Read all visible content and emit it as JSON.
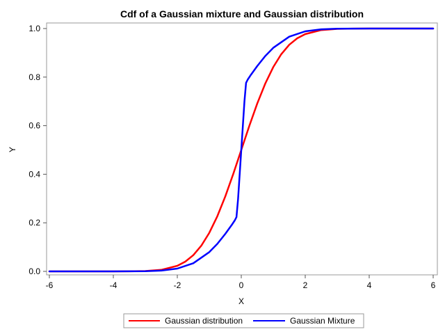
{
  "chart_data": {
    "type": "line",
    "title": "Cdf of a Gaussian mixture and Gaussian distribution",
    "xlabel": "X",
    "ylabel": "Y",
    "xlim": [
      -6,
      6
    ],
    "ylim": [
      0,
      1
    ],
    "xticks": [
      "-6",
      "-4",
      "-2",
      "0",
      "2",
      "4",
      "6"
    ],
    "yticks": [
      "0.0",
      "0.2",
      "0.4",
      "0.6",
      "0.8",
      "1.0"
    ],
    "grid": false,
    "legend_position": "bottom",
    "series": [
      {
        "name": "Gaussian distribution",
        "color": "#ff0000",
        "x": [
          -6,
          -5,
          -4,
          -3.5,
          -3,
          -2.5,
          -2,
          -1.75,
          -1.5,
          -1.25,
          -1,
          -0.75,
          -0.5,
          -0.25,
          0,
          0.25,
          0.5,
          0.75,
          1,
          1.25,
          1.5,
          1.75,
          2,
          2.5,
          3,
          3.5,
          4,
          5,
          6
        ],
        "y": [
          0,
          0,
          3e-05,
          0.0002,
          0.0013,
          0.0062,
          0.0228,
          0.0401,
          0.0668,
          0.1056,
          0.1587,
          0.2266,
          0.3085,
          0.4013,
          0.5,
          0.5987,
          0.6915,
          0.7734,
          0.8413,
          0.8944,
          0.9332,
          0.9599,
          0.9772,
          0.9938,
          0.9987,
          0.9998,
          1,
          1,
          1
        ]
      },
      {
        "name": "Gaussian Mixture",
        "color": "#0000ff",
        "x": [
          -6,
          -4,
          -3,
          -2.5,
          -2,
          -1.5,
          -1,
          -0.75,
          -0.5,
          -0.3,
          -0.2,
          -0.15,
          -0.1,
          -0.05,
          0,
          0.05,
          0.1,
          0.15,
          0.2,
          0.3,
          0.5,
          0.75,
          1,
          1.5,
          2,
          2.5,
          3,
          4,
          6
        ],
        "y": [
          0,
          0,
          0.0007,
          0.0031,
          0.0114,
          0.0334,
          0.0793,
          0.1133,
          0.1543,
          0.1909,
          0.2105,
          0.2238,
          0.2986,
          0.3994,
          0.5,
          0.6006,
          0.7014,
          0.7762,
          0.7895,
          0.8091,
          0.8457,
          0.8867,
          0.9207,
          0.9666,
          0.9886,
          0.9969,
          0.9993,
          1,
          1
        ]
      }
    ]
  }
}
